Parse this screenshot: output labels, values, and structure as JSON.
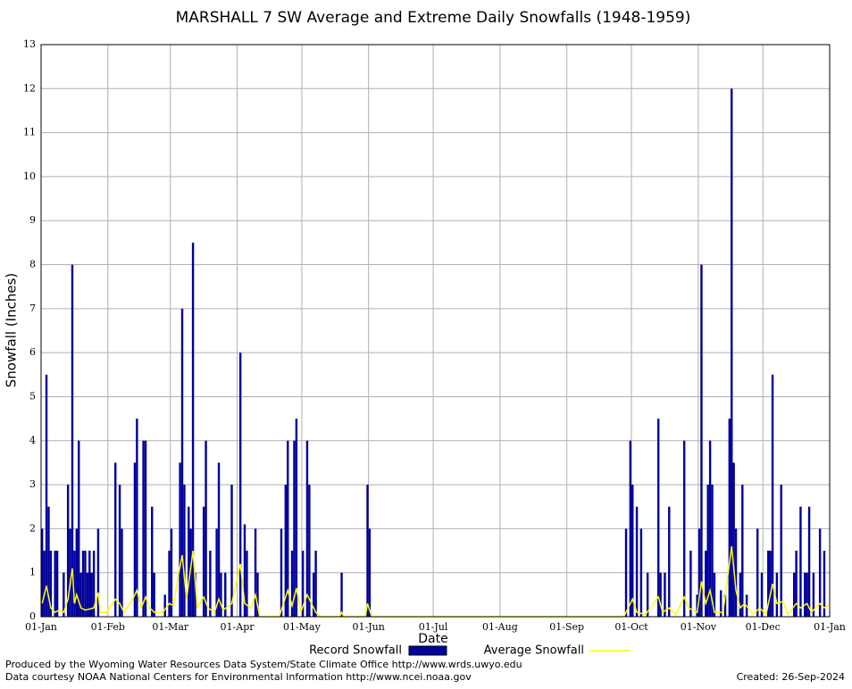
{
  "chart_data": {
    "type": "bar",
    "title": "MARSHALL 7 SW Average and Extreme Daily Snowfalls (1948-1959)",
    "x_label": "Date",
    "y_label": "Snowfall (Inches)",
    "xlim": [
      0,
      366
    ],
    "xticks": [
      {
        "value": 0,
        "label": "01-Jan"
      },
      {
        "value": 31,
        "label": "01-Feb"
      },
      {
        "value": 60,
        "label": "01-Mar"
      },
      {
        "value": 91,
        "label": "01-Apr"
      },
      {
        "value": 121,
        "label": "01-May"
      },
      {
        "value": 152,
        "label": "01-Jun"
      },
      {
        "value": 182,
        "label": "01-Jul"
      },
      {
        "value": 213,
        "label": "01-Aug"
      },
      {
        "value": 244,
        "label": "01-Sep"
      },
      {
        "value": 274,
        "label": "01-Oct"
      },
      {
        "value": 305,
        "label": "01-Nov"
      },
      {
        "value": 335,
        "label": "01-Dec"
      },
      {
        "value": 366,
        "label": "01-Jan"
      }
    ],
    "ylim": [
      0,
      13
    ],
    "yticks": [
      0,
      1,
      2,
      3,
      4,
      5,
      6,
      7,
      8,
      9,
      10,
      11,
      12,
      13
    ],
    "grid": true,
    "series": [
      {
        "name": "Record Snowfall",
        "type": "bar",
        "color": "#00009c",
        "x": [
          0,
          1,
          2,
          3,
          4,
          6,
          7,
          10,
          12,
          13,
          14,
          15,
          16,
          17,
          18,
          19,
          20,
          21,
          22,
          23,
          24,
          26,
          34,
          36,
          37,
          43,
          44,
          47,
          48,
          51,
          52,
          57,
          59,
          60,
          64,
          65,
          66,
          68,
          69,
          70,
          71,
          75,
          76,
          78,
          81,
          82,
          83,
          85,
          88,
          92,
          94,
          95,
          99,
          100,
          111,
          113,
          114,
          116,
          117,
          118,
          121,
          123,
          124,
          126,
          127,
          139,
          151,
          152,
          271,
          273,
          274,
          276,
          278,
          281,
          286,
          287,
          289,
          291,
          298,
          301,
          304,
          305,
          306,
          308,
          309,
          310,
          311,
          312,
          315,
          317,
          319,
          320,
          321,
          322,
          324,
          325,
          327,
          332,
          334,
          337,
          338,
          339,
          341,
          343,
          349,
          350,
          352,
          354,
          355,
          356,
          358,
          361,
          363
        ],
        "values": [
          2,
          1.5,
          5.5,
          2.5,
          1.5,
          1.5,
          1.5,
          1,
          3,
          2,
          8,
          1.5,
          2,
          4,
          1,
          1.5,
          1.5,
          1,
          1.5,
          1,
          1.5,
          2,
          3.5,
          3,
          2,
          3.5,
          4.5,
          4,
          4,
          2.5,
          1,
          0.5,
          1.5,
          2,
          3.5,
          7,
          3,
          2.5,
          2,
          8.5,
          1,
          2.5,
          4,
          1.5,
          2,
          3.5,
          1,
          1,
          3,
          6,
          2.1,
          1.5,
          2,
          1,
          2,
          3,
          4,
          1.5,
          4,
          4.5,
          1.5,
          4,
          3,
          1,
          1.5,
          1,
          3,
          2,
          2,
          4,
          3,
          2.5,
          2,
          1,
          4.5,
          1,
          1,
          2.5,
          4,
          1.5,
          0.5,
          2,
          8,
          1.5,
          3,
          4,
          3,
          1,
          0.6,
          0.5,
          4.5,
          12,
          3.5,
          2,
          1,
          3,
          0.5,
          2,
          1,
          1.5,
          1.5,
          5.5,
          1,
          3,
          1,
          1.5,
          2.5,
          1,
          1,
          2.5,
          1,
          2,
          1.5
        ]
      },
      {
        "name": "Average Snowfall",
        "type": "line",
        "color": "#ffff00",
        "x": [
          0,
          2,
          4,
          6,
          8,
          10,
          12,
          14,
          15,
          16,
          18,
          20,
          24,
          26,
          27,
          30,
          34,
          36,
          38,
          42,
          44,
          46,
          48,
          50,
          52,
          56,
          59,
          61,
          63,
          65,
          67,
          70,
          72,
          75,
          77,
          80,
          82,
          84,
          88,
          92,
          94,
          97,
          99,
          101,
          110,
          112,
          114,
          116,
          118,
          120,
          123,
          125,
          127,
          129,
          138,
          139,
          140,
          150,
          151,
          153,
          270,
          272,
          274,
          276,
          280,
          286,
          288,
          291,
          294,
          298,
          300,
          304,
          306,
          308,
          310,
          312,
          316,
          320,
          322,
          324,
          326,
          330,
          333,
          336,
          339,
          341,
          344,
          346,
          350,
          352,
          355,
          357,
          361,
          363,
          365
        ],
        "values": [
          0.3,
          0.7,
          0.2,
          0.1,
          0.15,
          0.1,
          0.4,
          1.1,
          0.3,
          0.5,
          0.2,
          0.15,
          0.2,
          0.55,
          0.1,
          0.1,
          0.4,
          0.3,
          0.1,
          0.4,
          0.6,
          0.2,
          0.45,
          0.2,
          0.1,
          0.1,
          0.3,
          0.25,
          0.9,
          1.4,
          0.4,
          1.5,
          0.2,
          0.45,
          0.2,
          0.1,
          0.4,
          0.15,
          0.3,
          1.2,
          0.3,
          0.2,
          0.5,
          0,
          0,
          0.3,
          0.6,
          0.25,
          0.65,
          0.1,
          0.5,
          0.3,
          0.1,
          0,
          0,
          0.1,
          0,
          0,
          0.3,
          0,
          0,
          0.2,
          0.4,
          0.1,
          0.05,
          0.45,
          0.1,
          0.2,
          0.05,
          0.45,
          0.2,
          0.1,
          0.8,
          0.3,
          0.6,
          0.1,
          0.1,
          1.6,
          0.6,
          0.2,
          0.3,
          0.05,
          0.2,
          0.05,
          0.75,
          0.3,
          0.35,
          0.05,
          0.3,
          0.2,
          0.3,
          0.1,
          0.3,
          0.2,
          0.25
        ]
      }
    ]
  },
  "footer": {
    "produced": "Produced by the Wyoming Water Resources Data System/State Climate Office http://www.wrds.uwyo.edu",
    "courtesy": "Data courtesy NOAA National Centers for Environmental Information http://www.ncei.noaa.gov",
    "created": "Created:  26-Sep-2024"
  }
}
